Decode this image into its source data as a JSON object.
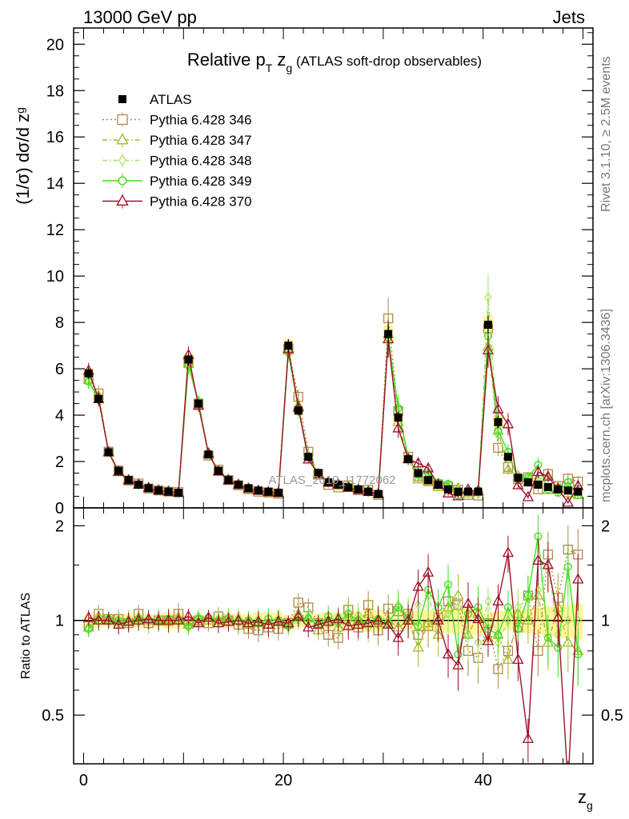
{
  "header": {
    "left": "13000 GeV pp",
    "right": "Jets"
  },
  "side_text": {
    "rivet": "Rivet 3.1.10, ≥ 2.5M events",
    "mcplots": "mcplots.cern.ch [arXiv:1306.3436]"
  },
  "watermark": "ATLAS_2019_I1772062",
  "chart_data": {
    "type": "line",
    "title": {
      "main": "Relative p",
      "sub": "T",
      "mid": " z",
      "sub2": "g",
      "tail": " (ATLAS soft-drop observables)"
    },
    "xlabel": {
      "main": "z",
      "sub": "g"
    },
    "ylabel": {
      "main": "(1/σ) dσ/d z",
      "sub": "g"
    },
    "ratio_ylabel": "Ratio to ATLAS",
    "xlim": [
      -1,
      51
    ],
    "ylim": [
      0,
      20.7
    ],
    "ratio_ylim": [
      0.35,
      2.28
    ],
    "xticks": [
      "0",
      "20",
      "40"
    ],
    "yticks": [
      "0",
      "2",
      "4",
      "6",
      "8",
      "10",
      "12",
      "14",
      "16",
      "18",
      "20"
    ],
    "ratio_yticks": [
      "0.5",
      "1",
      "2"
    ],
    "legend_position": "top-left",
    "x": [
      0.5,
      1.5,
      2.5,
      3.5,
      4.5,
      5.5,
      6.5,
      7.5,
      8.5,
      9.5,
      10.5,
      11.5,
      12.5,
      13.5,
      14.5,
      15.5,
      16.5,
      17.5,
      18.5,
      19.5,
      20.5,
      21.5,
      22.5,
      23.5,
      24.5,
      25.5,
      26.5,
      27.5,
      28.5,
      29.5,
      30.5,
      31.5,
      32.5,
      33.5,
      34.5,
      35.5,
      36.5,
      37.5,
      38.5,
      39.5,
      40.5,
      41.5,
      42.5,
      43.5,
      44.5,
      45.5,
      46.5,
      47.5,
      48.5,
      49.5
    ],
    "series": [
      {
        "name": "ATLAS",
        "color": "#000000",
        "marker": "square-filled",
        "style": "points",
        "values": [
          5.8,
          4.7,
          2.4,
          1.6,
          1.2,
          1.0,
          0.85,
          0.75,
          0.7,
          0.65,
          6.4,
          4.5,
          2.3,
          1.6,
          1.2,
          1.0,
          0.85,
          0.75,
          0.7,
          0.65,
          7.0,
          4.2,
          2.2,
          1.5,
          1.1,
          1.0,
          0.9,
          0.8,
          0.7,
          0.6,
          7.5,
          3.9,
          2.1,
          1.5,
          1.2,
          1.0,
          0.8,
          0.7,
          0.7,
          0.7,
          7.9,
          3.7,
          2.2,
          1.3,
          1.1,
          1.0,
          0.9,
          0.8,
          0.75,
          0.7
        ],
        "band": [
          0.04,
          0.05,
          0.04,
          0.05,
          0.05,
          0.05,
          0.05,
          0.05,
          0.06,
          0.06,
          0.04,
          0.04,
          0.04,
          0.05,
          0.05,
          0.05,
          0.05,
          0.06,
          0.06,
          0.06,
          0.04,
          0.05,
          0.05,
          0.05,
          0.06,
          0.06,
          0.07,
          0.07,
          0.08,
          0.08,
          0.05,
          0.06,
          0.06,
          0.07,
          0.08,
          0.08,
          0.09,
          0.1,
          0.1,
          0.1,
          0.05,
          0.07,
          0.07,
          0.08,
          0.09,
          0.1,
          0.11,
          0.12,
          0.12,
          0.13
        ]
      },
      {
        "name": "Pythia 6.428 346",
        "color": "#b08a4a",
        "marker": "square-open",
        "dash": "2,3",
        "ratio": [
          0.96,
          1.05,
          1.01,
          1.01,
          0.98,
          1.05,
          0.98,
          1.0,
          1.0,
          1.05,
          0.99,
          1.0,
          0.98,
          1.03,
          1.0,
          0.97,
          0.94,
          0.93,
          0.95,
          0.94,
          0.98,
          1.14,
          1.1,
          0.98,
          0.9,
          0.88,
          1.08,
          0.95,
          1.12,
          0.93,
          1.09,
          1.07,
          1.05,
          0.9,
          0.96,
          1.02,
          1.15,
          1.12,
          0.8,
          0.76,
          0.98,
          0.7,
          0.8,
          0.95,
          1.2,
          0.8,
          1.62,
          1.18,
          1.68,
          1.62
        ]
      },
      {
        "name": "Pythia 6.428 347",
        "color": "#a8b820",
        "marker": "triangle-open",
        "dash": "6,3,1.5,3",
        "ratio": [
          0.95,
          1.03,
          1.0,
          0.99,
          1.0,
          1.02,
          1.0,
          1.01,
          0.99,
          1.02,
          0.97,
          1.02,
          1.0,
          1.0,
          1.02,
          1.0,
          0.97,
          0.98,
          0.97,
          0.99,
          0.97,
          1.05,
          1.02,
          0.93,
          1.0,
          0.95,
          1.02,
          1.0,
          1.05,
          0.98,
          1.0,
          0.95,
          1.0,
          0.82,
          0.98,
          0.9,
          1.1,
          1.2,
          0.9,
          1.05,
          0.88,
          0.9,
          0.75,
          1.05,
          1.0,
          1.2,
          0.85,
          1.1,
          0.85,
          0.8
        ]
      },
      {
        "name": "Pythia 6.428 348",
        "color": "#a8e060",
        "marker": "diamond-open",
        "dash": "6,3,1.5,3",
        "ratio": [
          0.94,
          1.02,
          0.99,
          0.98,
          1.01,
          0.99,
          0.99,
          1.02,
          1.0,
          0.99,
          0.95,
          1.03,
          1.02,
          0.99,
          1.0,
          1.02,
          1.0,
          1.01,
          0.99,
          1.01,
          0.95,
          1.0,
          1.03,
          0.98,
          0.97,
          1.03,
          0.99,
          1.04,
          0.95,
          1.01,
          0.97,
          1.12,
          1.05,
          1.12,
          1.2,
          0.95,
          1.05,
          1.1,
          0.9,
          0.85,
          1.15,
          0.85,
          1.0,
          1.1,
          1.18,
          1.25,
          1.5,
          0.9,
          1.0,
          1.0
        ]
      },
      {
        "name": "Pythia 6.428 349",
        "color": "#40e020",
        "marker": "circle-open",
        "dash": "",
        "ratio": [
          0.94,
          1.0,
          1.01,
          1.0,
          0.99,
          1.01,
          1.0,
          0.99,
          1.01,
          1.0,
          0.96,
          1.01,
          1.02,
          1.0,
          1.01,
          0.99,
          1.0,
          0.98,
          1.01,
          1.0,
          0.96,
          1.02,
          1.01,
          0.97,
          1.03,
          0.99,
          1.05,
          1.0,
          0.98,
          1.01,
          0.98,
          1.1,
          1.02,
          0.96,
          1.25,
          1.1,
          1.3,
          0.78,
          1.05,
          1.1,
          0.94,
          0.9,
          1.1,
          0.94,
          1.2,
          1.85,
          0.88,
          0.82,
          1.48,
          0.78
        ]
      },
      {
        "name": "Pythia 6.428 370",
        "color": "#a0102a",
        "marker": "triangle-open",
        "dash": "",
        "ratio": [
          1.02,
          1.0,
          1.0,
          0.97,
          0.99,
          1.0,
          1.01,
          1.0,
          1.0,
          1.0,
          1.03,
          0.98,
          1.02,
          0.98,
          0.99,
          1.0,
          0.98,
          0.99,
          0.97,
          0.99,
          0.98,
          1.03,
          0.95,
          0.97,
          0.99,
          1.01,
          0.96,
          0.97,
          0.98,
          1.0,
          0.97,
          0.88,
          1.0,
          1.28,
          1.42,
          1.0,
          0.78,
          0.72,
          1.13,
          1.01,
          0.86,
          1.15,
          1.64,
          0.75,
          0.42,
          1.55,
          1.5,
          1.02,
          0.3,
          1.35
        ]
      }
    ]
  }
}
